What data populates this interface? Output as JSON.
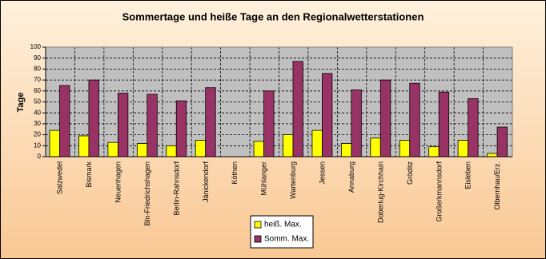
{
  "chart_data": {
    "type": "bar",
    "title": "Sommertage und heiße Tage an den Regionalwetterstationen",
    "y_label": "Tage",
    "categories": [
      "Salzwedel",
      "Bismark",
      "Neuenhagen",
      "Bln-Friedrichshagen",
      "Berlin-Rahnsdorf",
      "Jänickendorf",
      "Köthen",
      "Mühlanger",
      "Wartenburg",
      "Jessen",
      "Annaburg",
      "Doberlug-Kirchhain",
      "Gröditz",
      "Großerkmannsdorf",
      "Eisleben",
      "Olbernhau/Erz."
    ],
    "series": [
      {
        "name": "heiß. Max.",
        "color": "#ffff00",
        "values": [
          24,
          19,
          13,
          12,
          10,
          15,
          null,
          14,
          20,
          24,
          12,
          17,
          15,
          9,
          15,
          3
        ]
      },
      {
        "name": "Somm. Max.",
        "color": "#993366",
        "values": [
          65,
          70,
          58,
          57,
          51,
          63,
          null,
          60,
          87,
          76,
          61,
          70,
          67,
          59,
          53,
          27
        ]
      }
    ],
    "ylim": [
      0,
      100
    ],
    "yticks": [
      0,
      10,
      20,
      30,
      40,
      50,
      60,
      70,
      80,
      90,
      100
    ],
    "grid": true,
    "legend": "bottom"
  }
}
